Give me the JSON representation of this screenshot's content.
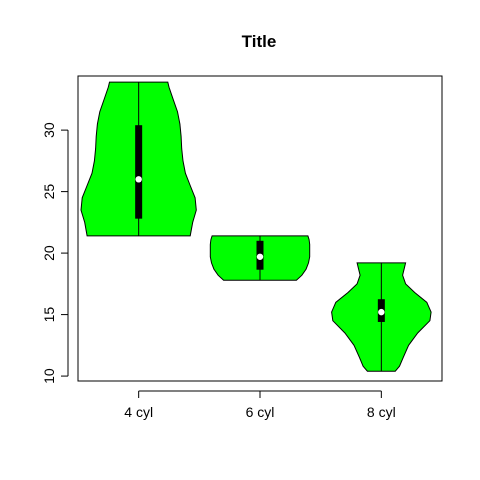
{
  "chart_data": {
    "type": "violin",
    "title": "Title",
    "xlabel": "",
    "ylabel": "",
    "ylim": [
      9.6,
      34.4
    ],
    "yticks": [
      10,
      15,
      20,
      25,
      30
    ],
    "categories": [
      "4 cyl",
      "6 cyl",
      "8 cyl"
    ],
    "violin_color": "#00ff00",
    "box_color": "#000000",
    "median_color": "#ffffff",
    "groups": [
      {
        "name": "4 cyl",
        "min": 21.4,
        "q1": 22.8,
        "median": 26.0,
        "q3": 30.4,
        "max": 33.9,
        "density": [
          [
            21.4,
            0.85
          ],
          [
            22.5,
            0.89
          ],
          [
            23.5,
            0.95
          ],
          [
            24.5,
            0.93
          ],
          [
            25.5,
            0.85
          ],
          [
            26.5,
            0.77
          ],
          [
            27.5,
            0.73
          ],
          [
            28.5,
            0.71
          ],
          [
            29.5,
            0.7
          ],
          [
            30.5,
            0.68
          ],
          [
            31.5,
            0.64
          ],
          [
            32.5,
            0.57
          ],
          [
            33.5,
            0.5
          ],
          [
            33.9,
            0.48
          ]
        ]
      },
      {
        "name": "6 cyl",
        "min": 17.8,
        "q1": 18.65,
        "median": 19.7,
        "q3": 21.0,
        "max": 21.4,
        "density": [
          [
            17.8,
            0.6
          ],
          [
            18.2,
            0.69
          ],
          [
            18.7,
            0.76
          ],
          [
            19.2,
            0.8
          ],
          [
            19.7,
            0.82
          ],
          [
            20.2,
            0.82
          ],
          [
            20.7,
            0.82
          ],
          [
            21.1,
            0.81
          ],
          [
            21.4,
            0.79
          ]
        ]
      },
      {
        "name": "8 cyl",
        "min": 10.4,
        "q1": 14.4,
        "median": 15.2,
        "q3": 16.25,
        "max": 19.2,
        "density": [
          [
            10.4,
            0.23
          ],
          [
            10.8,
            0.3
          ],
          [
            11.5,
            0.36
          ],
          [
            12.5,
            0.45
          ],
          [
            13.5,
            0.6
          ],
          [
            14.5,
            0.8
          ],
          [
            15.2,
            0.82
          ],
          [
            16.0,
            0.75
          ],
          [
            16.8,
            0.55
          ],
          [
            17.5,
            0.4
          ],
          [
            18.2,
            0.35
          ],
          [
            18.8,
            0.38
          ],
          [
            19.2,
            0.4
          ]
        ]
      }
    ]
  }
}
